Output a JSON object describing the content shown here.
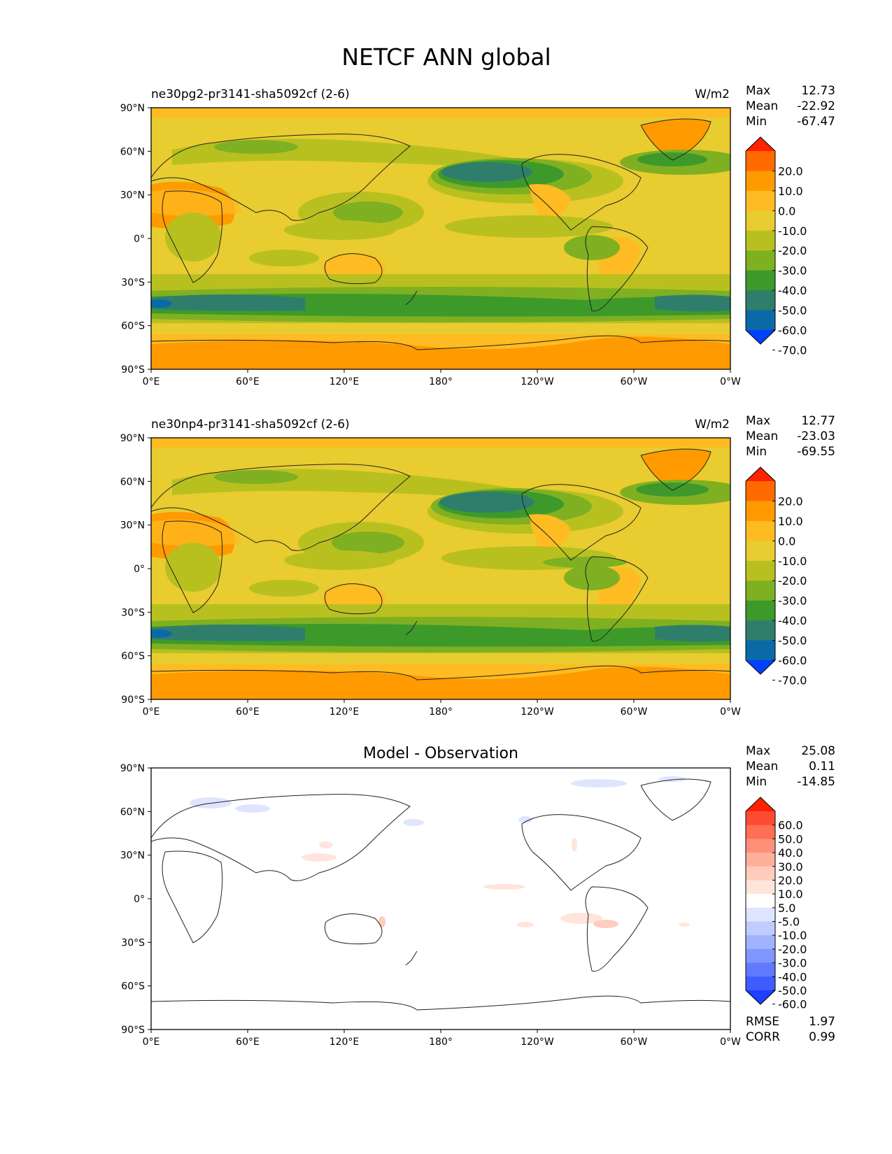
{
  "figure": {
    "title": "NETCF ANN global"
  },
  "axes": {
    "lat_labels": [
      "90°N",
      "60°N",
      "30°N",
      "0°",
      "30°S",
      "60°S",
      "90°S"
    ],
    "lon_labels": [
      "0°E",
      "60°E",
      "120°E",
      "180°",
      "120°W",
      "60°W",
      "0°W"
    ]
  },
  "panels": [
    {
      "kind": "field",
      "title_left": "ne30pg2-pr3141-sha5092cf (2-6)",
      "title_right": "W/m2",
      "stats": [
        {
          "label": "Max",
          "value": "12.73"
        },
        {
          "label": "Mean",
          "value": "-22.92"
        },
        {
          "label": "Min",
          "value": "-67.47"
        }
      ]
    },
    {
      "kind": "field",
      "title_left": "ne30np4-pr3141-sha5092cf (2-6)",
      "title_right": "W/m2",
      "stats": [
        {
          "label": "Max",
          "value": "12.77"
        },
        {
          "label": "Mean",
          "value": "-23.03"
        },
        {
          "label": "Min",
          "value": "-69.55"
        }
      ]
    },
    {
      "kind": "diff",
      "title_center": "Model - Observation",
      "stats": [
        {
          "label": "Max",
          "value": "25.08"
        },
        {
          "label": "Mean",
          "value": "0.11"
        },
        {
          "label": "Min",
          "value": "-14.85"
        }
      ],
      "metrics": [
        {
          "label": "RMSE",
          "value": "1.97"
        },
        {
          "label": "CORR",
          "value": "0.99"
        }
      ]
    }
  ],
  "colorbars": {
    "field": {
      "labels": [
        "20.0",
        "10.0",
        "0.0",
        "-10.0",
        "-20.0",
        "-30.0",
        "-40.0",
        "-50.0",
        "-60.0",
        "-70.0"
      ],
      "colors": [
        "#ff2200",
        "#ff6a00",
        "#ff9a00",
        "#ffbb22",
        "#e8cc30",
        "#b8c020",
        "#7fb021",
        "#3d9a2a",
        "#2f7e6c",
        "#0a6aa8",
        "#0040ff"
      ]
    },
    "diff": {
      "labels": [
        "60.0",
        "50.0",
        "40.0",
        "30.0",
        "20.0",
        "10.0",
        "5.0",
        "-5.0",
        "-10.0",
        "-20.0",
        "-30.0",
        "-40.0",
        "-50.0",
        "-60.0"
      ],
      "colors": [
        "#ff2200",
        "#ff4a33",
        "#ff6e55",
        "#ff9078",
        "#ffb09b",
        "#ffccbd",
        "#ffe5dc",
        "#ffffff",
        "#dfe5ff",
        "#c0ccff",
        "#a0b2ff",
        "#8096ff",
        "#5f7aff",
        "#3e5cff",
        "#1f3eff"
      ]
    }
  }
}
